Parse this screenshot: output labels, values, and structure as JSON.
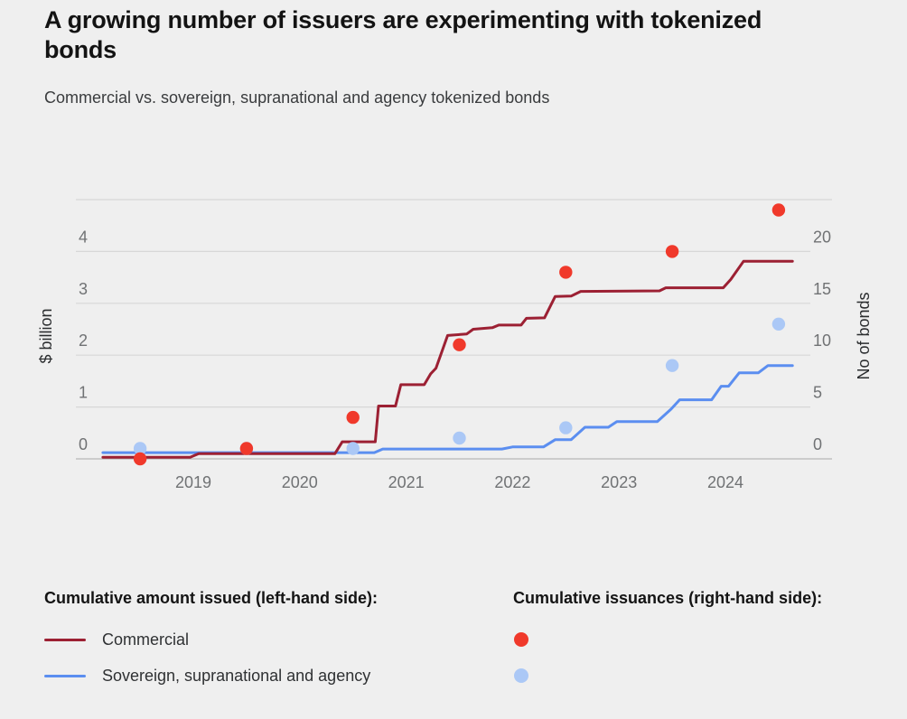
{
  "title": "A growing number of issuers are experimenting with tokenized bonds",
  "subtitle": "Commercial vs. sovereign, supranational and agency tokenized bonds",
  "colors": {
    "background": "#efefef",
    "commercial_line": "#9c2033",
    "ssa_line": "#5b8ef0",
    "commercial_dot": "#f0392b",
    "ssa_dot": "#abc8f6",
    "gridline": "#d7d7d7",
    "axis_line": "#b8b8b8",
    "tick_text": "#707274",
    "axis_title_text": "#2a2c2e"
  },
  "chart_data": {
    "type": "line+scatter",
    "title": "A growing number of issuers are experimenting with tokenized bonds",
    "subtitle": "Commercial vs. sovereign, supranational and agency tokenized bonds",
    "grid": true,
    "x_axis": {
      "tick_labels": [
        "2019",
        "2020",
        "2021",
        "2022",
        "2023",
        "2024"
      ],
      "tick_values": [
        2019,
        2020,
        2021,
        2022,
        2023,
        2024
      ],
      "range": [
        2018.1,
        2024.75
      ]
    },
    "left_axis": {
      "title": "$ billion",
      "tick_values": [
        0,
        1,
        2,
        3,
        4
      ],
      "gridline_values": [
        0,
        1,
        2,
        3,
        4,
        5
      ],
      "range": [
        0,
        5
      ]
    },
    "right_axis": {
      "title": "No of bonds",
      "tick_values": [
        0,
        5,
        10,
        15,
        20
      ],
      "range": [
        0,
        25
      ]
    },
    "series": [
      {
        "id": "ssa-amount",
        "name": "Sovereign, supranational and agency",
        "kind": "line",
        "axis": "left",
        "color_key": "ssa_line",
        "points": [
          [
            2018.15,
            0.12
          ],
          [
            2020.7,
            0.12
          ],
          [
            2020.78,
            0.19
          ],
          [
            2021.9,
            0.19
          ],
          [
            2022.0,
            0.23
          ],
          [
            2022.29,
            0.23
          ],
          [
            2022.4,
            0.37
          ],
          [
            2022.55,
            0.37
          ],
          [
            2022.68,
            0.61
          ],
          [
            2022.9,
            0.61
          ],
          [
            2022.98,
            0.72
          ],
          [
            2023.36,
            0.72
          ],
          [
            2023.49,
            0.96
          ],
          [
            2023.57,
            1.14
          ],
          [
            2023.87,
            1.14
          ],
          [
            2023.96,
            1.4
          ],
          [
            2024.03,
            1.4
          ],
          [
            2024.13,
            1.66
          ],
          [
            2024.31,
            1.66
          ],
          [
            2024.4,
            1.8
          ],
          [
            2024.63,
            1.8
          ]
        ]
      },
      {
        "id": "commercial-amount",
        "name": "Commercial",
        "kind": "line",
        "axis": "left",
        "color_key": "commercial_line",
        "points": [
          [
            2018.15,
            0.03
          ],
          [
            2018.97,
            0.03
          ],
          [
            2019.05,
            0.1
          ],
          [
            2020.33,
            0.1
          ],
          [
            2020.4,
            0.33
          ],
          [
            2020.71,
            0.33
          ],
          [
            2020.74,
            1.02
          ],
          [
            2020.9,
            1.02
          ],
          [
            2020.95,
            1.43
          ],
          [
            2021.17,
            1.43
          ],
          [
            2021.23,
            1.64
          ],
          [
            2021.28,
            1.75
          ],
          [
            2021.39,
            2.38
          ],
          [
            2021.57,
            2.41
          ],
          [
            2021.63,
            2.5
          ],
          [
            2021.81,
            2.53
          ],
          [
            2021.87,
            2.58
          ],
          [
            2022.08,
            2.58
          ],
          [
            2022.13,
            2.71
          ],
          [
            2022.3,
            2.72
          ],
          [
            2022.4,
            3.13
          ],
          [
            2022.55,
            3.14
          ],
          [
            2022.64,
            3.23
          ],
          [
            2023.38,
            3.24
          ],
          [
            2023.44,
            3.3
          ],
          [
            2023.98,
            3.3
          ],
          [
            2024.05,
            3.46
          ],
          [
            2024.17,
            3.81
          ],
          [
            2024.63,
            3.81
          ]
        ]
      },
      {
        "id": "ssa-issuances",
        "name": "Sovereign, supranational and agency (cumulative issuances)",
        "kind": "scatter",
        "axis": "right",
        "color_key": "ssa_dot",
        "points": [
          [
            2018.5,
            1
          ],
          [
            2019.5,
            1
          ],
          [
            2020.5,
            1
          ],
          [
            2021.5,
            2
          ],
          [
            2022.5,
            3
          ],
          [
            2023.5,
            9
          ],
          [
            2024.5,
            13
          ]
        ]
      },
      {
        "id": "commercial-issuances",
        "name": "Commercial (cumulative issuances)",
        "kind": "scatter",
        "axis": "right",
        "color_key": "commercial_dot",
        "points": [
          [
            2018.5,
            0
          ],
          [
            2019.5,
            1
          ],
          [
            2020.5,
            4
          ],
          [
            2021.5,
            11
          ],
          [
            2022.5,
            18
          ],
          [
            2023.5,
            20
          ],
          [
            2024.5,
            24
          ]
        ]
      }
    ]
  },
  "legend": {
    "amount": {
      "title": "Cumulative amount issued (left-hand side):",
      "items": [
        {
          "label": "Commercial",
          "color_key": "commercial_line"
        },
        {
          "label": "Sovereign, supranational and agency",
          "color_key": "ssa_line"
        }
      ]
    },
    "issuances": {
      "title": "Cumulative issuances (right-hand side):",
      "items": [
        {
          "color_key": "commercial_dot"
        },
        {
          "color_key": "ssa_dot"
        }
      ]
    }
  }
}
